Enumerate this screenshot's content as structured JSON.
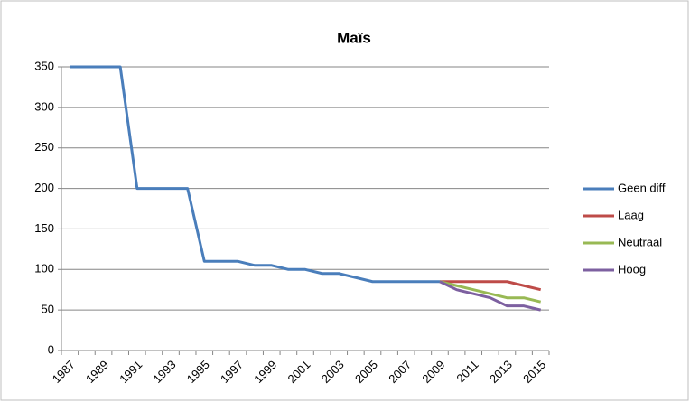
{
  "chart_data": {
    "type": "line",
    "title": "Maïs",
    "categories": [
      "1987",
      null,
      "1989",
      null,
      "1991",
      null,
      "1993",
      null,
      "1995",
      null,
      "1997",
      null,
      "1999",
      null,
      "2001",
      null,
      "2003",
      null,
      "2005",
      null,
      "2007",
      null,
      "2009",
      null,
      "2011",
      null,
      "2013",
      null,
      "2015"
    ],
    "series": [
      {
        "name": "Geen diff",
        "color": "#4a7ebb",
        "values": [
          350,
          350,
          350,
          350,
          200,
          200,
          200,
          200,
          110,
          110,
          110,
          105,
          105,
          100,
          100,
          95,
          95,
          90,
          85,
          85,
          85,
          85,
          85,
          null,
          null,
          null,
          null,
          null,
          null
        ]
      },
      {
        "name": "Laag",
        "color": "#be4b48",
        "values": [
          null,
          null,
          null,
          null,
          null,
          null,
          null,
          null,
          null,
          null,
          null,
          null,
          null,
          null,
          null,
          null,
          null,
          null,
          null,
          null,
          null,
          null,
          85,
          85,
          85,
          85,
          85,
          80,
          75
        ]
      },
      {
        "name": "Neutraal",
        "color": "#98b954",
        "values": [
          null,
          null,
          null,
          null,
          null,
          null,
          null,
          null,
          null,
          null,
          null,
          null,
          null,
          null,
          null,
          null,
          null,
          null,
          null,
          null,
          null,
          null,
          85,
          80,
          75,
          70,
          65,
          65,
          60
        ]
      },
      {
        "name": "Hoog",
        "color": "#7d60a0",
        "values": [
          null,
          null,
          null,
          null,
          null,
          null,
          null,
          null,
          null,
          null,
          null,
          null,
          null,
          null,
          null,
          null,
          null,
          null,
          null,
          null,
          null,
          null,
          85,
          75,
          70,
          65,
          55,
          55,
          50
        ]
      }
    ],
    "ylim": [
      0,
      350
    ],
    "yticks": [
      0,
      50,
      100,
      150,
      200,
      250,
      300,
      350
    ],
    "grid": true,
    "legend": "right"
  }
}
